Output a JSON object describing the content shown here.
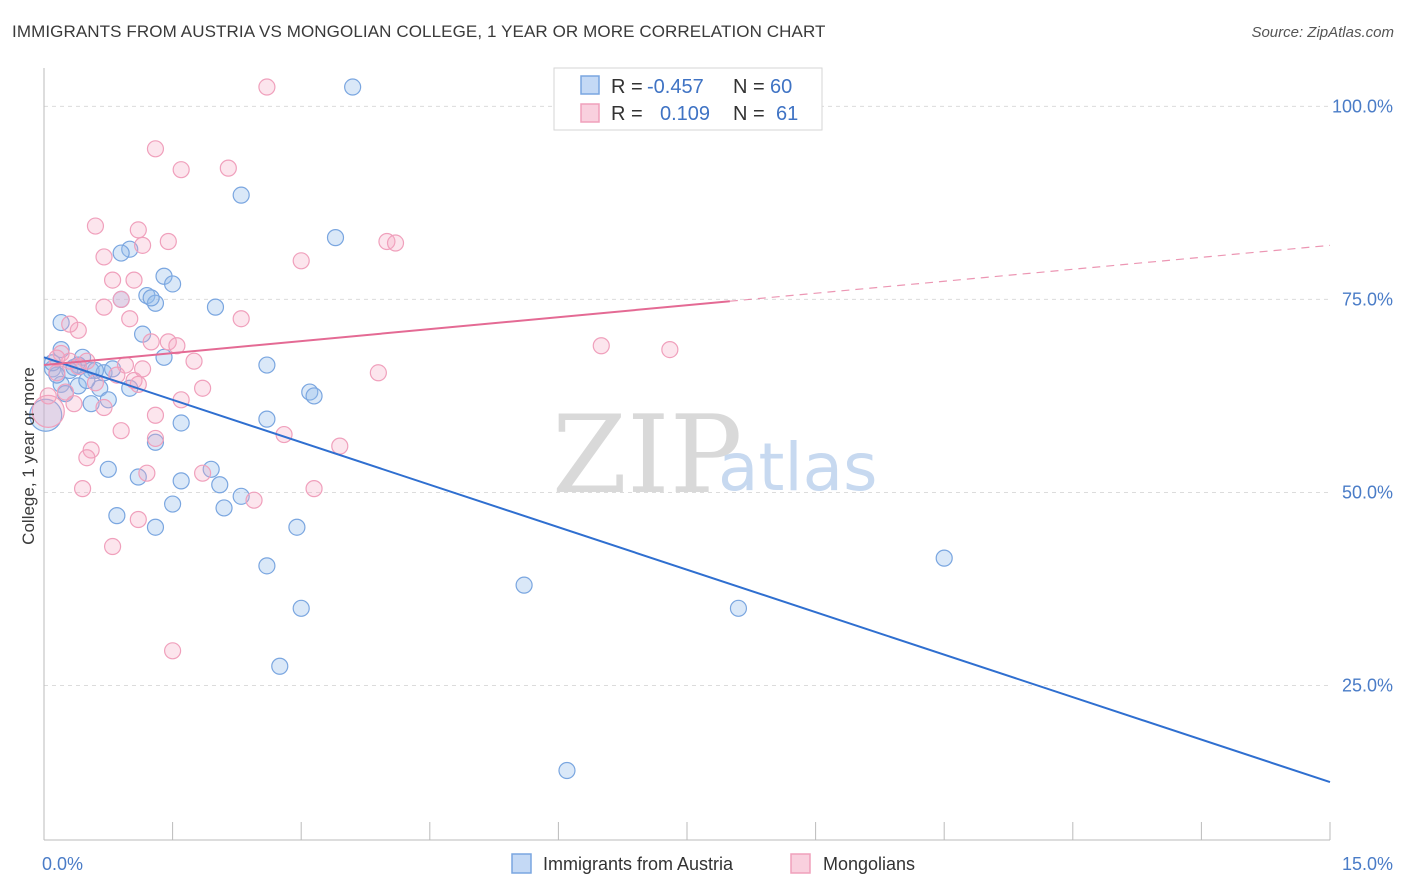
{
  "title": "IMMIGRANTS FROM AUSTRIA VS MONGOLIAN COLLEGE, 1 YEAR OR MORE CORRELATION CHART",
  "source": "Source: ZipAtlas.com",
  "watermark": {
    "zip": "ZIP",
    "atlas": "atlas"
  },
  "colors": {
    "blue": "#7aa6e0",
    "blue_line": "#2f6fd0",
    "pink": "#f0a0bc",
    "pink_line": "#e46a94",
    "tick": "#4a7cc7"
  },
  "legend_box": {
    "rows": [
      {
        "r_label": "R =",
        "r_value": "-0.457",
        "n_label": "N =",
        "n_value": "60"
      },
      {
        "r_label": "R =",
        "r_value": "0.109",
        "n_label": "N =",
        "n_value": "61"
      }
    ]
  },
  "bottom_legend": [
    "Immigrants from Austria",
    "Mongolians"
  ],
  "chart_data": {
    "type": "scatter",
    "xlabel": "",
    "ylabel": "College, 1 year or more",
    "xlim": [
      0,
      15
    ],
    "ylim": [
      5,
      106
    ],
    "x_tick_labels": [
      {
        "value": 0,
        "label": "0.0%"
      },
      {
        "value": 15,
        "label": "15.0%"
      }
    ],
    "y_tick_labels": [
      {
        "value": 100,
        "label": "100.0%"
      },
      {
        "value": 75,
        "label": "75.0%"
      },
      {
        "value": 50,
        "label": "50.0%"
      },
      {
        "value": 25,
        "label": "25.0%"
      }
    ],
    "series": [
      {
        "name": "Immigrants from Austria",
        "color": "#7aa6e0",
        "trend": {
          "x": [
            0,
            15
          ],
          "y": [
            67.5,
            12.5
          ],
          "dashed_from": null
        },
        "points": [
          [
            3.6,
            102.5
          ],
          [
            2.3,
            88.5
          ],
          [
            3.4,
            83.0
          ],
          [
            1.0,
            81.5
          ],
          [
            0.9,
            81.0
          ],
          [
            1.4,
            78.0
          ],
          [
            1.5,
            77.0
          ],
          [
            1.2,
            75.5
          ],
          [
            0.9,
            75.0
          ],
          [
            1.3,
            74.5
          ],
          [
            2.0,
            74.0
          ],
          [
            0.2,
            72.0
          ],
          [
            1.15,
            70.5
          ],
          [
            0.2,
            68.5
          ],
          [
            1.4,
            67.5
          ],
          [
            0.45,
            67.5
          ],
          [
            2.6,
            66.5
          ],
          [
            0.4,
            66.5
          ],
          [
            0.1,
            66.0
          ],
          [
            0.3,
            65.8
          ],
          [
            0.55,
            65.8
          ],
          [
            0.7,
            65.5
          ],
          [
            0.6,
            65.8
          ],
          [
            0.2,
            64.0
          ],
          [
            0.4,
            63.8
          ],
          [
            0.65,
            63.5
          ],
          [
            1.0,
            63.5
          ],
          [
            0.25,
            62.8
          ],
          [
            3.1,
            63.0
          ],
          [
            3.15,
            62.5
          ],
          [
            0.75,
            62.0
          ],
          [
            0.55,
            61.5
          ],
          [
            0.02,
            60.0
          ],
          [
            2.6,
            59.5
          ],
          [
            1.6,
            59.0
          ],
          [
            1.3,
            56.5
          ],
          [
            0.75,
            53.0
          ],
          [
            1.95,
            53.0
          ],
          [
            1.1,
            52.0
          ],
          [
            1.6,
            51.5
          ],
          [
            2.05,
            51.0
          ],
          [
            2.3,
            49.5
          ],
          [
            1.5,
            48.5
          ],
          [
            2.1,
            48.0
          ],
          [
            0.85,
            47.0
          ],
          [
            1.3,
            45.5
          ],
          [
            2.95,
            45.5
          ],
          [
            2.6,
            40.5
          ],
          [
            5.6,
            38.0
          ],
          [
            3.0,
            35.0
          ],
          [
            8.1,
            35.0
          ],
          [
            10.5,
            41.5
          ],
          [
            2.75,
            27.5
          ],
          [
            6.1,
            14.0
          ],
          [
            0.35,
            66.2
          ],
          [
            0.5,
            64.5
          ],
          [
            0.15,
            65.2
          ],
          [
            0.8,
            66.0
          ],
          [
            1.25,
            75.2
          ],
          [
            0.1,
            66.8
          ]
        ]
      },
      {
        "name": "Mongolians",
        "color": "#f0a0bc",
        "trend": {
          "x": [
            0,
            15
          ],
          "y": [
            66.5,
            82.0
          ],
          "dashed_from": 8.0
        },
        "points": [
          [
            2.6,
            102.5
          ],
          [
            1.3,
            94.5
          ],
          [
            2.15,
            92.0
          ],
          [
            1.6,
            91.8
          ],
          [
            0.6,
            84.5
          ],
          [
            1.1,
            84.0
          ],
          [
            4.0,
            82.5
          ],
          [
            4.1,
            82.3
          ],
          [
            1.15,
            82.0
          ],
          [
            1.45,
            82.5
          ],
          [
            0.7,
            80.5
          ],
          [
            3.0,
            80.0
          ],
          [
            0.8,
            77.5
          ],
          [
            1.05,
            77.5
          ],
          [
            0.7,
            74.0
          ],
          [
            0.9,
            75.0
          ],
          [
            2.3,
            72.5
          ],
          [
            1.0,
            72.5
          ],
          [
            0.4,
            71.0
          ],
          [
            0.3,
            71.8
          ],
          [
            1.45,
            69.5
          ],
          [
            1.55,
            69.0
          ],
          [
            1.25,
            69.5
          ],
          [
            6.5,
            69.0
          ],
          [
            7.3,
            68.5
          ],
          [
            0.2,
            68.0
          ],
          [
            0.3,
            67.0
          ],
          [
            1.75,
            67.0
          ],
          [
            0.5,
            67.0
          ],
          [
            0.95,
            66.5
          ],
          [
            1.15,
            66.0
          ],
          [
            0.15,
            65.5
          ],
          [
            0.85,
            65.2
          ],
          [
            3.9,
            65.5
          ],
          [
            1.05,
            64.5
          ],
          [
            0.6,
            64.2
          ],
          [
            1.1,
            64.0
          ],
          [
            1.85,
            63.5
          ],
          [
            0.25,
            63.0
          ],
          [
            1.6,
            62.0
          ],
          [
            0.35,
            61.5
          ],
          [
            0.7,
            61.0
          ],
          [
            0.05,
            60.5
          ],
          [
            1.3,
            60.0
          ],
          [
            0.9,
            58.0
          ],
          [
            2.8,
            57.5
          ],
          [
            1.3,
            57.0
          ],
          [
            3.45,
            56.0
          ],
          [
            0.55,
            55.5
          ],
          [
            0.5,
            54.5
          ],
          [
            1.2,
            52.5
          ],
          [
            1.85,
            52.5
          ],
          [
            0.45,
            50.5
          ],
          [
            3.15,
            50.5
          ],
          [
            2.45,
            49.0
          ],
          [
            1.1,
            46.5
          ],
          [
            0.8,
            43.0
          ],
          [
            1.5,
            29.5
          ],
          [
            0.05,
            62.5
          ],
          [
            0.4,
            66.3
          ],
          [
            0.15,
            67.4
          ]
        ]
      }
    ]
  }
}
